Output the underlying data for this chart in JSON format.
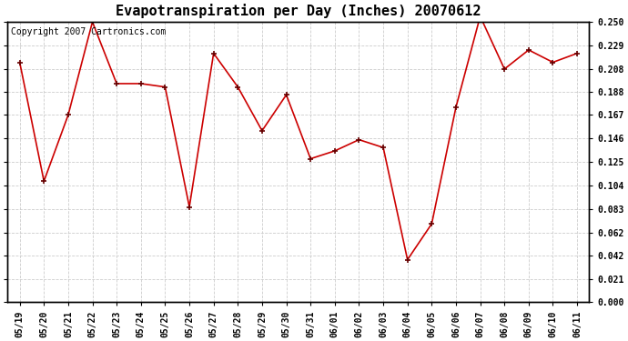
{
  "title": "Evapotranspiration per Day (Inches) 20070612",
  "copyright": "Copyright 2007 Cartronics.com",
  "x_labels": [
    "05/19",
    "05/20",
    "05/21",
    "05/22",
    "05/23",
    "05/24",
    "05/25",
    "05/26",
    "05/27",
    "05/28",
    "05/29",
    "05/30",
    "05/31",
    "06/01",
    "06/02",
    "06/03",
    "06/04",
    "06/05",
    "06/06",
    "06/07",
    "06/08",
    "06/09",
    "06/10",
    "06/11"
  ],
  "y_values": [
    0.214,
    0.108,
    0.167,
    0.25,
    0.195,
    0.195,
    0.192,
    0.085,
    0.222,
    0.192,
    0.153,
    0.185,
    0.128,
    0.135,
    0.145,
    0.138,
    0.038,
    0.07,
    0.174,
    0.255,
    0.208,
    0.225,
    0.214,
    0.222
  ],
  "y_ticks": [
    0.0,
    0.021,
    0.042,
    0.062,
    0.083,
    0.104,
    0.125,
    0.146,
    0.167,
    0.188,
    0.208,
    0.229,
    0.25
  ],
  "line_color": "#cc0000",
  "marker": "+",
  "marker_color": "#660000",
  "background_color": "#ffffff",
  "plot_bg_color": "#ffffff",
  "grid_color": "#cccccc",
  "title_fontsize": 11,
  "copyright_fontsize": 7,
  "tick_fontsize": 7,
  "ylim": [
    0.0,
    0.25
  ],
  "figsize": [
    6.9,
    3.75
  ],
  "dpi": 100
}
